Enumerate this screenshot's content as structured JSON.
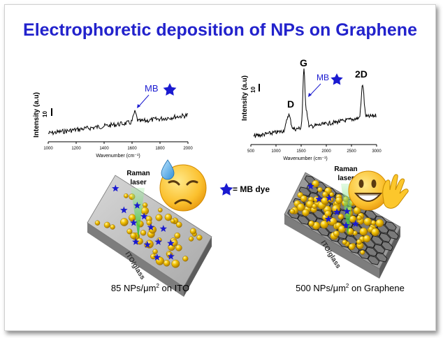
{
  "title": "Electrophoretic deposition of NPs on Graphene",
  "colors": {
    "title": "#2222cc",
    "star": "#1a1ad0",
    "np": "#e8b400",
    "beam": "#33cc33"
  },
  "legend": {
    "star_label": "= MB dye"
  },
  "spectrum_left": {
    "ylabel": "Intensity (a.u)",
    "xlabel": "Wavenumber (cm⁻¹)",
    "scale_label": "10",
    "xticks": [
      "1000",
      "1200",
      "1400",
      "1600",
      "1800",
      "2000"
    ],
    "annotation": "MB",
    "xlim": [
      1000,
      2000
    ]
  },
  "spectrum_right": {
    "ylabel": "Intensity (a.u)",
    "xlabel": "Wavenumber (cm⁻¹)",
    "scale_label": "10",
    "xticks": [
      "500",
      "1000",
      "1500",
      "2000",
      "2500",
      "3000"
    ],
    "annotation": "MB",
    "peak_labels": {
      "d": "D",
      "g": "G",
      "twod": "2D"
    },
    "xlim": [
      500,
      3000
    ]
  },
  "left_scheme": {
    "laser_line1": "Raman",
    "laser_line2": "laser",
    "substrate": "ITO/glass",
    "caption_a": "85 NPs/μm",
    "caption_sup": "2",
    "caption_b": " on ITO"
  },
  "right_scheme": {
    "laser_line1": "Raman",
    "laser_line2": "laser",
    "substrate": "ITO/glass",
    "caption_a": "500 NPs/μm",
    "caption_sup": "2",
    "caption_b": " on Graphene"
  },
  "emoji_left": "sad-sweat-emoji",
  "emoji_right": "grinning-wave-emoji"
}
